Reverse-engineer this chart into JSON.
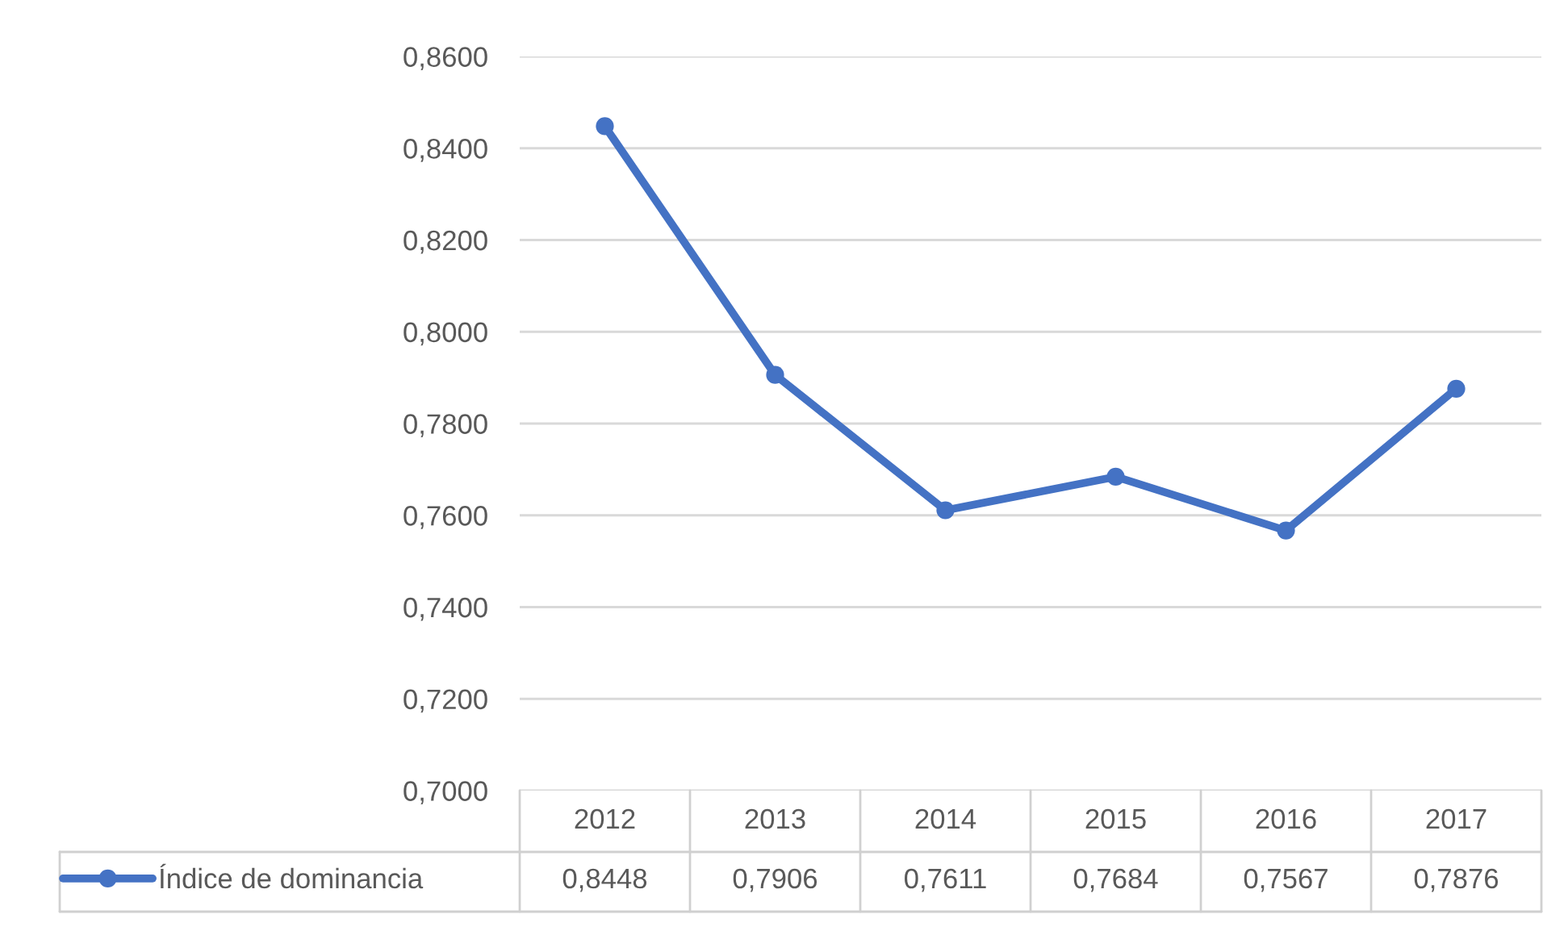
{
  "chart_data": {
    "type": "line",
    "categories": [
      "2012",
      "2013",
      "2014",
      "2015",
      "2016",
      "2017"
    ],
    "series": [
      {
        "name": "Índice de dominancia",
        "color": "#4472c4",
        "values": [
          0.8448,
          0.7906,
          0.7611,
          0.7684,
          0.7567,
          0.7876
        ],
        "value_labels": [
          "0,8448",
          "0,7906",
          "0,7611",
          "0,7684",
          "0,7567",
          "0,7876"
        ]
      }
    ],
    "ylim": [
      0.7,
      0.86
    ],
    "yticks": [
      {
        "value": 0.7,
        "label": "0,7000"
      },
      {
        "value": 0.72,
        "label": "0,7200"
      },
      {
        "value": 0.74,
        "label": "0,7400"
      },
      {
        "value": 0.76,
        "label": "0,7600"
      },
      {
        "value": 0.78,
        "label": "0,7800"
      },
      {
        "value": 0.8,
        "label": "0,8000"
      },
      {
        "value": 0.82,
        "label": "0,8200"
      },
      {
        "value": 0.84,
        "label": "0,8400"
      },
      {
        "value": 0.86,
        "label": "0,8600"
      }
    ],
    "grid": "y",
    "legend": "bottom",
    "marker": "circle",
    "line_style": "solid"
  }
}
